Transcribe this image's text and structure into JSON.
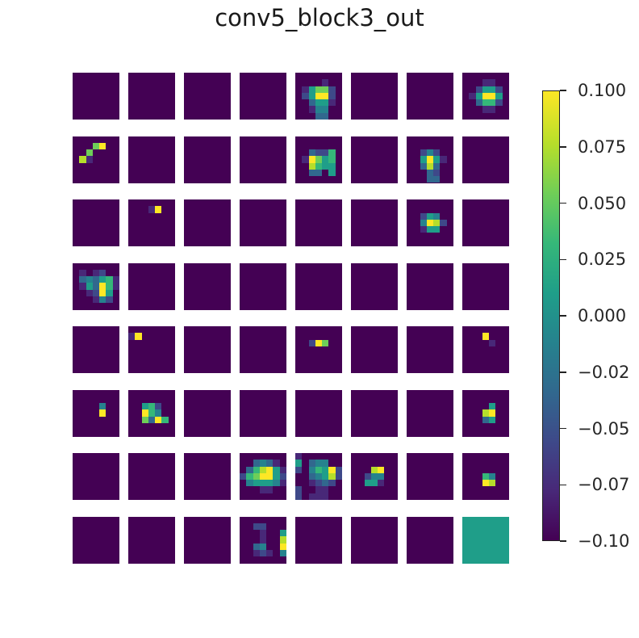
{
  "chart_data": {
    "type": "heatmap",
    "title": "conv5_block3_out",
    "layout": {
      "rows": 8,
      "cols": 8,
      "tile_pixels": 7
    },
    "colormap": "viridis",
    "colorbar": {
      "vmin": -0.1,
      "vmax": 0.1,
      "ticks": [
        0.1,
        0.075,
        0.05,
        0.025,
        0.0,
        -0.025,
        -0.05,
        -0.075,
        -0.1
      ],
      "tick_labels": [
        "0.100",
        "0.075",
        "0.050",
        "0.025",
        "0.000",
        "−0.02",
        "−0.05",
        "−0.07",
        "−0.10"
      ]
    },
    "colors": [
      "#440154",
      "#482878",
      "#3e4989",
      "#31688e",
      "#26828e",
      "#1f9e89",
      "#35b779",
      "#6ece58",
      "#b5de2b",
      "#fde725"
    ],
    "tiles": [
      {
        "r": 0,
        "c": 0,
        "px": []
      },
      {
        "r": 0,
        "c": 1,
        "px": []
      },
      {
        "r": 0,
        "c": 2,
        "px": []
      },
      {
        "r": 0,
        "c": 3,
        "px": []
      },
      {
        "r": 0,
        "c": 4,
        "px": [
          [
            1,
            4,
            1
          ],
          [
            2,
            1,
            1
          ],
          [
            2,
            2,
            5
          ],
          [
            2,
            3,
            7
          ],
          [
            2,
            4,
            7
          ],
          [
            2,
            5,
            2
          ],
          [
            3,
            1,
            2
          ],
          [
            3,
            2,
            5
          ],
          [
            3,
            3,
            9
          ],
          [
            3,
            4,
            9
          ],
          [
            3,
            5,
            2
          ],
          [
            4,
            2,
            3
          ],
          [
            4,
            3,
            5
          ],
          [
            4,
            4,
            5
          ],
          [
            4,
            5,
            1
          ],
          [
            5,
            2,
            1
          ],
          [
            5,
            3,
            4
          ],
          [
            5,
            4,
            4
          ],
          [
            6,
            3,
            3
          ],
          [
            6,
            4,
            3
          ]
        ]
      },
      {
        "r": 0,
        "c": 5,
        "px": []
      },
      {
        "r": 0,
        "c": 6,
        "px": []
      },
      {
        "r": 0,
        "c": 7,
        "px": [
          [
            1,
            3,
            1
          ],
          [
            1,
            4,
            1
          ],
          [
            2,
            2,
            2
          ],
          [
            2,
            3,
            5
          ],
          [
            2,
            4,
            5
          ],
          [
            2,
            5,
            2
          ],
          [
            3,
            1,
            1
          ],
          [
            3,
            2,
            5
          ],
          [
            3,
            3,
            9
          ],
          [
            3,
            4,
            9
          ],
          [
            3,
            5,
            5
          ],
          [
            4,
            2,
            3
          ],
          [
            4,
            3,
            6
          ],
          [
            4,
            4,
            6
          ],
          [
            4,
            5,
            2
          ],
          [
            5,
            3,
            1
          ],
          [
            5,
            4,
            1
          ]
        ]
      },
      {
        "r": 1,
        "c": 0,
        "px": [
          [
            1,
            3,
            7
          ],
          [
            1,
            4,
            9
          ],
          [
            2,
            2,
            7
          ],
          [
            3,
            1,
            8
          ],
          [
            3,
            2,
            1
          ]
        ]
      },
      {
        "r": 1,
        "c": 1,
        "px": []
      },
      {
        "r": 1,
        "c": 2,
        "px": []
      },
      {
        "r": 1,
        "c": 3,
        "px": []
      },
      {
        "r": 1,
        "c": 4,
        "px": [
          [
            2,
            2,
            3
          ],
          [
            2,
            3,
            2
          ],
          [
            2,
            4,
            2
          ],
          [
            2,
            5,
            6
          ],
          [
            3,
            1,
            1
          ],
          [
            3,
            2,
            9
          ],
          [
            3,
            3,
            7
          ],
          [
            3,
            4,
            5
          ],
          [
            3,
            5,
            6
          ],
          [
            4,
            2,
            8
          ],
          [
            4,
            3,
            6
          ],
          [
            4,
            4,
            5
          ],
          [
            4,
            5,
            5
          ],
          [
            5,
            2,
            3
          ],
          [
            5,
            3,
            3
          ],
          [
            5,
            5,
            5
          ]
        ]
      },
      {
        "r": 1,
        "c": 5,
        "px": []
      },
      {
        "r": 1,
        "c": 6,
        "px": [
          [
            2,
            2,
            2
          ],
          [
            2,
            3,
            4
          ],
          [
            2,
            4,
            2
          ],
          [
            3,
            2,
            5
          ],
          [
            3,
            3,
            9
          ],
          [
            3,
            4,
            5
          ],
          [
            3,
            5,
            1
          ],
          [
            4,
            2,
            3
          ],
          [
            4,
            3,
            8
          ],
          [
            4,
            4,
            3
          ],
          [
            5,
            3,
            3
          ],
          [
            5,
            4,
            2
          ],
          [
            6,
            3,
            3
          ],
          [
            6,
            4,
            3
          ]
        ]
      },
      {
        "r": 1,
        "c": 7,
        "px": []
      },
      {
        "r": 2,
        "c": 0,
        "px": []
      },
      {
        "r": 2,
        "c": 1,
        "px": [
          [
            1,
            3,
            1
          ],
          [
            1,
            4,
            9
          ]
        ]
      },
      {
        "r": 2,
        "c": 2,
        "px": []
      },
      {
        "r": 2,
        "c": 3,
        "px": []
      },
      {
        "r": 2,
        "c": 4,
        "px": []
      },
      {
        "r": 2,
        "c": 5,
        "px": []
      },
      {
        "r": 2,
        "c": 6,
        "px": [
          [
            2,
            2,
            2
          ],
          [
            2,
            3,
            5
          ],
          [
            2,
            4,
            4
          ],
          [
            3,
            2,
            4
          ],
          [
            3,
            3,
            9
          ],
          [
            3,
            4,
            8
          ],
          [
            3,
            5,
            2
          ],
          [
            4,
            2,
            1
          ],
          [
            4,
            3,
            5
          ],
          [
            4,
            4,
            5
          ]
        ]
      },
      {
        "r": 2,
        "c": 7,
        "px": []
      },
      {
        "r": 3,
        "c": 0,
        "px": [
          [
            1,
            1,
            1
          ],
          [
            1,
            3,
            1
          ],
          [
            1,
            4,
            2
          ],
          [
            2,
            1,
            3
          ],
          [
            2,
            2,
            4
          ],
          [
            2,
            3,
            3
          ],
          [
            2,
            4,
            5
          ],
          [
            2,
            5,
            6
          ],
          [
            2,
            6,
            1
          ],
          [
            3,
            1,
            1
          ],
          [
            3,
            2,
            5
          ],
          [
            3,
            3,
            3
          ],
          [
            3,
            4,
            9
          ],
          [
            3,
            5,
            6
          ],
          [
            3,
            6,
            1
          ],
          [
            4,
            2,
            1
          ],
          [
            4,
            3,
            2
          ],
          [
            4,
            4,
            9
          ],
          [
            4,
            5,
            5
          ],
          [
            5,
            3,
            1
          ],
          [
            5,
            4,
            4
          ],
          [
            5,
            5,
            2
          ]
        ]
      },
      {
        "r": 3,
        "c": 1,
        "px": []
      },
      {
        "r": 3,
        "c": 2,
        "px": []
      },
      {
        "r": 3,
        "c": 3,
        "px": []
      },
      {
        "r": 3,
        "c": 4,
        "px": []
      },
      {
        "r": 3,
        "c": 5,
        "px": []
      },
      {
        "r": 3,
        "c": 6,
        "px": []
      },
      {
        "r": 3,
        "c": 7,
        "px": []
      },
      {
        "r": 4,
        "c": 0,
        "px": []
      },
      {
        "r": 4,
        "c": 1,
        "px": [
          [
            1,
            0,
            1
          ],
          [
            1,
            1,
            9
          ]
        ]
      },
      {
        "r": 4,
        "c": 2,
        "px": []
      },
      {
        "r": 4,
        "c": 3,
        "px": []
      },
      {
        "r": 4,
        "c": 4,
        "px": [
          [
            2,
            2,
            2
          ],
          [
            2,
            3,
            9
          ],
          [
            2,
            4,
            7
          ]
        ]
      },
      {
        "r": 4,
        "c": 5,
        "px": []
      },
      {
        "r": 4,
        "c": 6,
        "px": []
      },
      {
        "r": 4,
        "c": 7,
        "px": [
          [
            1,
            3,
            9
          ],
          [
            2,
            4,
            1
          ]
        ]
      },
      {
        "r": 5,
        "c": 0,
        "px": [
          [
            2,
            4,
            4
          ],
          [
            3,
            4,
            9
          ]
        ]
      },
      {
        "r": 5,
        "c": 1,
        "px": [
          [
            2,
            2,
            5
          ],
          [
            2,
            3,
            6
          ],
          [
            2,
            4,
            2
          ],
          [
            3,
            2,
            9
          ],
          [
            3,
            3,
            6
          ],
          [
            3,
            4,
            4
          ],
          [
            4,
            2,
            7
          ],
          [
            4,
            3,
            3
          ],
          [
            4,
            4,
            9
          ],
          [
            4,
            5,
            6
          ]
        ]
      },
      {
        "r": 5,
        "c": 2,
        "px": []
      },
      {
        "r": 5,
        "c": 3,
        "px": []
      },
      {
        "r": 5,
        "c": 4,
        "px": []
      },
      {
        "r": 5,
        "c": 5,
        "px": []
      },
      {
        "r": 5,
        "c": 6,
        "px": []
      },
      {
        "r": 5,
        "c": 7,
        "px": [
          [
            2,
            4,
            5
          ],
          [
            3,
            3,
            8
          ],
          [
            3,
            4,
            9
          ],
          [
            4,
            3,
            3
          ],
          [
            4,
            4,
            5
          ]
        ]
      },
      {
        "r": 6,
        "c": 0,
        "px": []
      },
      {
        "r": 6,
        "c": 1,
        "px": []
      },
      {
        "r": 6,
        "c": 2,
        "px": []
      },
      {
        "r": 6,
        "c": 3,
        "px": [
          [
            1,
            2,
            3
          ],
          [
            1,
            3,
            4
          ],
          [
            1,
            4,
            3
          ],
          [
            1,
            5,
            1
          ],
          [
            2,
            1,
            3
          ],
          [
            2,
            2,
            6
          ],
          [
            2,
            3,
            8
          ],
          [
            2,
            4,
            9
          ],
          [
            2,
            5,
            5
          ],
          [
            2,
            6,
            1
          ],
          [
            3,
            0,
            2
          ],
          [
            3,
            1,
            6
          ],
          [
            3,
            2,
            7
          ],
          [
            3,
            3,
            9
          ],
          [
            3,
            4,
            9
          ],
          [
            3,
            5,
            5
          ],
          [
            3,
            6,
            2
          ],
          [
            4,
            1,
            4
          ],
          [
            4,
            2,
            5
          ],
          [
            4,
            3,
            5
          ],
          [
            4,
            4,
            5
          ],
          [
            4,
            5,
            4
          ],
          [
            4,
            6,
            1
          ],
          [
            5,
            3,
            1
          ],
          [
            5,
            4,
            1
          ]
        ]
      },
      {
        "r": 6,
        "c": 4,
        "px": [
          [
            0,
            0,
            1
          ],
          [
            1,
            0,
            5
          ],
          [
            1,
            2,
            3
          ],
          [
            1,
            3,
            4
          ],
          [
            1,
            4,
            4
          ],
          [
            2,
            0,
            2
          ],
          [
            2,
            2,
            4
          ],
          [
            2,
            3,
            6
          ],
          [
            2,
            4,
            5
          ],
          [
            2,
            5,
            9
          ],
          [
            2,
            6,
            2
          ],
          [
            3,
            2,
            3
          ],
          [
            3,
            3,
            4
          ],
          [
            3,
            4,
            5
          ],
          [
            3,
            5,
            8
          ],
          [
            3,
            6,
            2
          ],
          [
            4,
            2,
            1
          ],
          [
            4,
            3,
            2
          ],
          [
            4,
            4,
            3
          ],
          [
            4,
            5,
            2
          ],
          [
            5,
            0,
            2
          ],
          [
            5,
            3,
            1
          ],
          [
            5,
            4,
            1
          ],
          [
            6,
            0,
            2
          ],
          [
            6,
            2,
            1
          ],
          [
            6,
            3,
            1
          ],
          [
            6,
            4,
            1
          ]
        ]
      },
      {
        "r": 6,
        "c": 5,
        "px": [
          [
            2,
            3,
            8
          ],
          [
            2,
            4,
            9
          ],
          [
            3,
            2,
            2
          ],
          [
            3,
            3,
            4
          ],
          [
            3,
            4,
            4
          ],
          [
            4,
            2,
            5
          ],
          [
            4,
            3,
            5
          ],
          [
            4,
            4,
            1
          ]
        ]
      },
      {
        "r": 6,
        "c": 6,
        "px": []
      },
      {
        "r": 6,
        "c": 7,
        "px": [
          [
            3,
            3,
            6
          ],
          [
            3,
            4,
            4
          ],
          [
            4,
            3,
            9
          ],
          [
            4,
            4,
            8
          ]
        ]
      },
      {
        "r": 7,
        "c": 0,
        "px": []
      },
      {
        "r": 7,
        "c": 1,
        "px": []
      },
      {
        "r": 7,
        "c": 2,
        "px": []
      },
      {
        "r": 7,
        "c": 3,
        "px": [
          [
            1,
            2,
            2
          ],
          [
            1,
            3,
            2
          ],
          [
            2,
            3,
            1
          ],
          [
            3,
            3,
            1
          ],
          [
            4,
            2,
            3
          ],
          [
            4,
            3,
            4
          ],
          [
            5,
            2,
            1
          ],
          [
            5,
            3,
            2
          ],
          [
            5,
            4,
            1
          ],
          [
            2,
            6,
            5
          ],
          [
            3,
            6,
            8
          ],
          [
            4,
            6,
            9
          ],
          [
            5,
            6,
            4
          ]
        ]
      },
      {
        "r": 7,
        "c": 4,
        "px": []
      },
      {
        "r": 7,
        "c": 5,
        "px": []
      },
      {
        "r": 7,
        "c": 6,
        "px": []
      },
      {
        "r": 7,
        "c": 7,
        "fill": 5,
        "px": []
      }
    ]
  }
}
